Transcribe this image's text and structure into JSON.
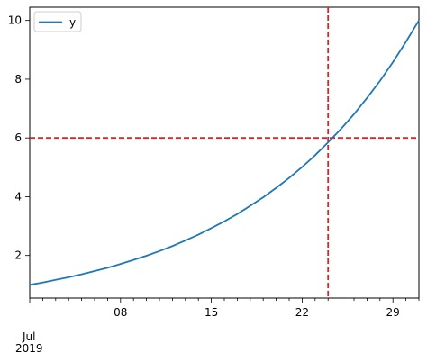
{
  "chart_data": {
    "type": "line",
    "x": [
      "2019-07-01",
      "2019-07-02",
      "2019-07-03",
      "2019-07-04",
      "2019-07-05",
      "2019-07-06",
      "2019-07-07",
      "2019-07-08",
      "2019-07-09",
      "2019-07-10",
      "2019-07-11",
      "2019-07-12",
      "2019-07-13",
      "2019-07-14",
      "2019-07-15",
      "2019-07-16",
      "2019-07-17",
      "2019-07-18",
      "2019-07-19",
      "2019-07-20",
      "2019-07-21",
      "2019-07-22",
      "2019-07-23",
      "2019-07-24",
      "2019-07-25",
      "2019-07-26",
      "2019-07-27",
      "2019-07-28",
      "2019-07-29",
      "2019-07-30",
      "2019-07-31"
    ],
    "series": [
      {
        "name": "y",
        "color": "#1f77b4",
        "values": [
          1.0,
          1.08,
          1.17,
          1.26,
          1.36,
          1.47,
          1.58,
          1.71,
          1.85,
          1.99,
          2.15,
          2.32,
          2.51,
          2.71,
          2.93,
          3.16,
          3.41,
          3.69,
          3.98,
          4.3,
          4.64,
          5.01,
          5.41,
          5.85,
          6.31,
          6.81,
          7.36,
          7.94,
          8.58,
          9.27,
          10.0
        ]
      }
    ],
    "xlim": [
      "2019-07-01",
      "2019-07-31"
    ],
    "ylim": [
      0.55,
      10.45
    ],
    "x_major_ticks": [
      {
        "date": "2019-07-08",
        "label": "08"
      },
      {
        "date": "2019-07-15",
        "label": "15"
      },
      {
        "date": "2019-07-22",
        "label": "22"
      },
      {
        "date": "2019-07-29",
        "label": "29"
      }
    ],
    "x_month_label": {
      "date": "2019-07-01",
      "line1": "Jul",
      "line2": "2019"
    },
    "y_ticks": [
      2,
      4,
      6,
      8,
      10
    ],
    "reference_lines": [
      {
        "orientation": "vertical",
        "date": "2019-07-24",
        "color": "#d62728",
        "style": "dashed"
      },
      {
        "orientation": "horizontal",
        "value": 6.0,
        "color": "#d62728",
        "style": "dashed"
      }
    ],
    "legend": {
      "placement": "top-left",
      "entries": [
        "y"
      ]
    },
    "grid": false,
    "xlabel": "",
    "ylabel": "",
    "title": ""
  }
}
